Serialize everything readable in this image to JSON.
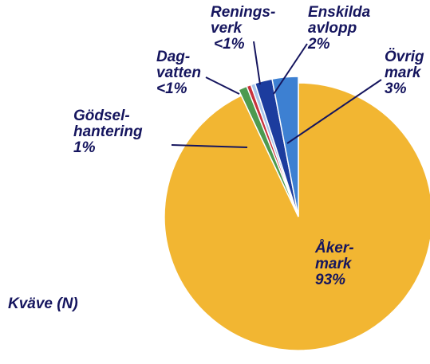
{
  "chart_data": {
    "type": "pie",
    "title": "Kväve (N)",
    "categories": [
      "Åker-\nmark",
      "Gödsel-\nhantering",
      "Dag-\nvatten",
      "Renings-\nverk",
      "Enskilda\navlopp",
      "Övrig\nmark"
    ],
    "values": [
      93,
      1,
      0.5,
      0.5,
      2,
      3
    ],
    "value_labels": [
      "93%",
      "1%",
      "<1%",
      "<1%",
      "2%",
      "3%"
    ],
    "colors": [
      "#f2b632",
      "#4d9a4f",
      "#c8323c",
      "#a9c6ea",
      "#1c3c9e",
      "#3d80d2"
    ]
  }
}
